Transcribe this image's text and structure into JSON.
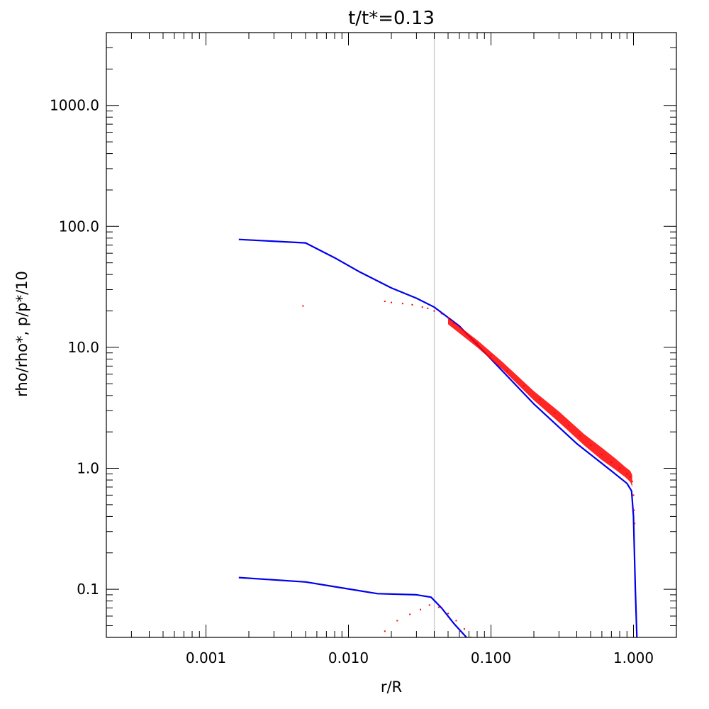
{
  "chart_data": {
    "type": "line",
    "title": "t/t*=0.13",
    "xlabel": "r/R",
    "ylabel": "rho/rho*,  p/p*/10",
    "xscale": "log",
    "yscale": "log",
    "xlim": [
      0.0002,
      2.0
    ],
    "ylim": [
      0.04,
      4000
    ],
    "x_ticks": [
      {
        "value": 0.001,
        "label": "0.001"
      },
      {
        "value": 0.01,
        "label": "0.010"
      },
      {
        "value": 0.1,
        "label": "0.100"
      },
      {
        "value": 1.0,
        "label": "1.000"
      }
    ],
    "y_ticks": [
      {
        "value": 0.1,
        "label": "0.1"
      },
      {
        "value": 1.0,
        "label": "1.0"
      },
      {
        "value": 10.0,
        "label": "10.0"
      },
      {
        "value": 100.0,
        "label": "100.0"
      },
      {
        "value": 1000.0,
        "label": "1000.0"
      }
    ],
    "grid": false,
    "reference_line": {
      "x": 0.04,
      "color": "#c8c8c8"
    },
    "series": [
      {
        "color": "#0000ee",
        "style": "line",
        "x": [
          0.0017,
          0.005,
          0.008,
          0.012,
          0.02,
          0.03,
          0.04,
          0.06,
          0.1,
          0.2,
          0.4,
          0.7,
          0.9,
          0.97,
          1.0,
          1.03,
          1.06
        ],
        "y": [
          78,
          73,
          55,
          42,
          31,
          25.5,
          21.5,
          15,
          8.0,
          3.4,
          1.6,
          0.95,
          0.75,
          0.65,
          0.4,
          0.1,
          0.035
        ]
      },
      {
        "color": "#0000ee",
        "style": "line",
        "x": [
          0.0017,
          0.005,
          0.008,
          0.016,
          0.03,
          0.038,
          0.045,
          0.055,
          0.07
        ],
        "y": [
          0.125,
          0.115,
          0.105,
          0.092,
          0.09,
          0.086,
          0.07,
          0.052,
          0.038
        ]
      },
      {
        "color": "#ff0000",
        "style": "points",
        "x": [
          0.0048,
          0.018,
          0.02,
          0.024,
          0.028,
          0.033,
          0.036,
          0.04,
          0.045,
          0.05,
          0.055,
          0.065,
          0.08,
          0.1,
          0.13,
          0.17,
          0.22,
          0.28,
          0.35,
          0.42,
          0.5,
          0.6,
          0.7,
          0.8,
          0.9,
          0.95,
          0.98,
          1.0,
          1.01,
          1.02,
          0.018,
          0.022,
          0.027,
          0.032,
          0.037,
          0.043,
          0.05,
          0.057,
          0.065,
          0.072
        ],
        "y": [
          22,
          24,
          23.5,
          23,
          22.5,
          21.5,
          21,
          20,
          19,
          17.5,
          15.8,
          13.5,
          10.8,
          8.6,
          6.4,
          4.8,
          3.7,
          2.85,
          2.25,
          1.86,
          1.55,
          1.3,
          1.12,
          1.0,
          0.9,
          0.85,
          0.78,
          0.6,
          0.45,
          0.35,
          0.045,
          0.055,
          0.062,
          0.068,
          0.074,
          0.071,
          0.063,
          0.055,
          0.047,
          0.04
        ]
      },
      {
        "color": "#ff0000",
        "style": "band",
        "x": [
          0.05,
          0.08,
          0.12,
          0.2,
          0.3,
          0.45,
          0.6,
          0.75,
          0.88,
          0.95,
          0.98
        ],
        "y_low": [
          15.5,
          10,
          6.6,
          3.65,
          2.4,
          1.55,
          1.17,
          0.97,
          0.84,
          0.77,
          0.7
        ],
        "y_high": [
          17.5,
          11.5,
          7.6,
          4.35,
          2.95,
          1.92,
          1.48,
          1.2,
          1.02,
          0.95,
          0.88
        ]
      }
    ]
  }
}
